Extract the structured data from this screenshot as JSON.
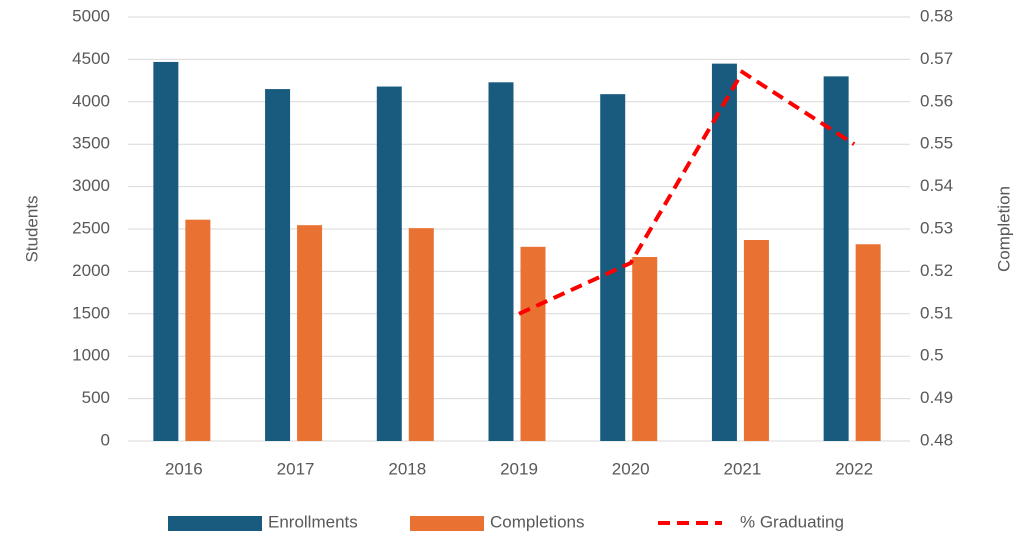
{
  "chart_data": {
    "type": "bar",
    "categories": [
      "2016",
      "2017",
      "2018",
      "2019",
      "2020",
      "2021",
      "2022"
    ],
    "series": [
      {
        "name": "Enrollments",
        "type": "bar",
        "color": "#195b7e",
        "values": [
          4470,
          4150,
          4180,
          4230,
          4090,
          4450,
          4300
        ]
      },
      {
        "name": "Completions",
        "type": "bar",
        "color": "#e97132",
        "values": [
          2610,
          2545,
          2510,
          2290,
          2170,
          2370,
          2320
        ]
      },
      {
        "name": "% Graduating",
        "type": "line",
        "axis": "y2",
        "color": "#ff0000",
        "dashed": true,
        "values": [
          null,
          null,
          null,
          0.51,
          0.522,
          0.567,
          0.55
        ]
      }
    ],
    "ylabel": "Students",
    "y2label": "Completion",
    "ylim": [
      0,
      5000
    ],
    "yticks": [
      0,
      500,
      1000,
      1500,
      2000,
      2500,
      3000,
      3500,
      4000,
      4500,
      5000
    ],
    "y2lim": [
      0.48,
      0.58
    ],
    "y2ticks": [
      0.48,
      0.49,
      0.5,
      0.51,
      0.52,
      0.53,
      0.54,
      0.55,
      0.56,
      0.57,
      0.58
    ],
    "grid": true,
    "legend": "bottom"
  }
}
